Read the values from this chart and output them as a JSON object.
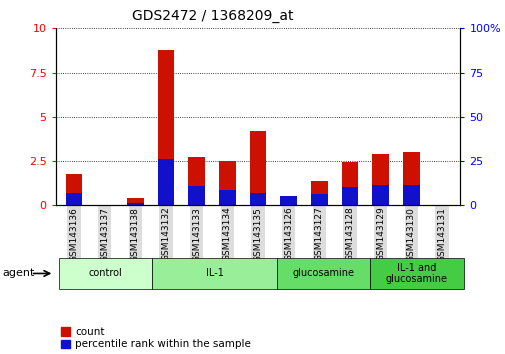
{
  "title": "GDS2472 / 1368209_at",
  "samples": [
    "GSM143136",
    "GSM143137",
    "GSM143138",
    "GSM143132",
    "GSM143133",
    "GSM143134",
    "GSM143135",
    "GSM143126",
    "GSM143127",
    "GSM143128",
    "GSM143129",
    "GSM143130",
    "GSM143131"
  ],
  "count_values": [
    1.75,
    0.0,
    0.4,
    8.8,
    2.75,
    2.5,
    4.2,
    0.0,
    1.35,
    2.45,
    2.9,
    3.0,
    0.0
  ],
  "percentile_values": [
    7.0,
    0.0,
    1.5,
    26.0,
    11.0,
    8.5,
    7.0,
    5.5,
    6.5,
    10.5,
    11.5,
    11.5,
    0.0
  ],
  "groups": [
    {
      "label": "control",
      "start": 0,
      "end": 3,
      "color": "#ccffcc"
    },
    {
      "label": "IL-1",
      "start": 3,
      "end": 7,
      "color": "#99ee99"
    },
    {
      "label": "glucosamine",
      "start": 7,
      "end": 10,
      "color": "#66dd66"
    },
    {
      "label": "IL-1 and\nglucosamine",
      "start": 10,
      "end": 13,
      "color": "#44cc44"
    }
  ],
  "ylim_left": [
    0,
    10
  ],
  "ylim_right": [
    0,
    100
  ],
  "yticks_left": [
    0,
    2.5,
    5.0,
    7.5,
    10
  ],
  "yticks_right": [
    0,
    25,
    50,
    75,
    100
  ],
  "bar_color_count": "#cc1100",
  "bar_color_percentile": "#1111cc",
  "bar_width": 0.55,
  "agent_label": "agent",
  "legend_count_label": "count",
  "legend_percentile_label": "percentile rank within the sample"
}
